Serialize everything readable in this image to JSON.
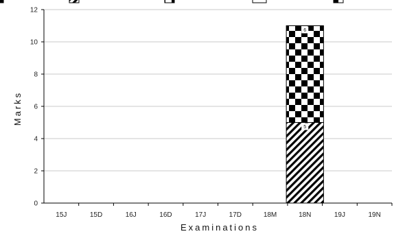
{
  "chart_data": {
    "type": "bar",
    "stacked": true,
    "categories": [
      "15J",
      "15D",
      "16J",
      "16D",
      "17J",
      "17D",
      "18M",
      "18N",
      "19J",
      "19N"
    ],
    "series": [
      {
        "values": [
          0,
          0,
          0,
          0,
          0,
          0,
          0,
          5,
          0,
          0
        ],
        "pattern": "diagonal-stripes"
      },
      {
        "values": [
          0,
          0,
          0,
          0,
          0,
          0,
          0,
          6,
          0,
          0
        ],
        "pattern": "checkerboard"
      }
    ],
    "xlabel": "Examinations",
    "ylabel": "Marks",
    "ylim": [
      0,
      12
    ],
    "yticks": [
      0,
      2,
      4,
      6,
      8,
      10,
      12
    ],
    "grid": true,
    "legend": "top (clipped)",
    "colors": {
      "bar_outline": "#000000",
      "grid": "#c8c8c8",
      "axis": "#000000"
    }
  }
}
